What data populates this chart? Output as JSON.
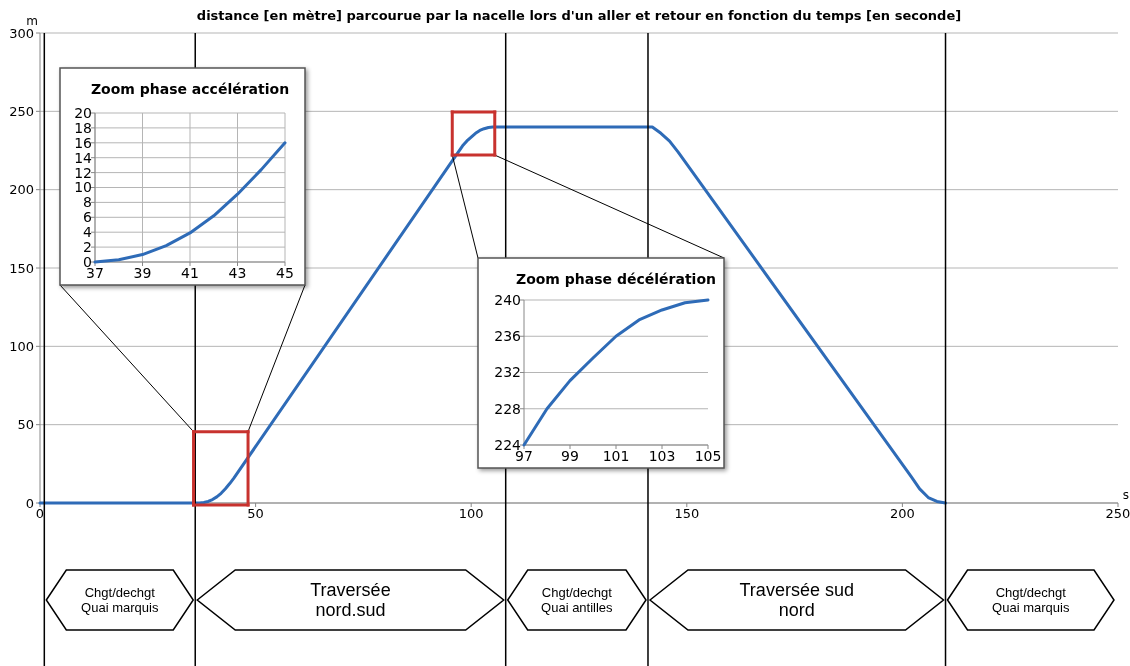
{
  "chart_data": [
    {
      "type": "line",
      "title": "distance [en mètre] parcourue par la nacelle lors d'un aller et retour en fonction du temps [en seconde]",
      "xlabel": "s",
      "ylabel": "m",
      "x": [
        0,
        37,
        38,
        39,
        40,
        41,
        42,
        43,
        44,
        45,
        97,
        98,
        99,
        100,
        101,
        102,
        103,
        104,
        105,
        142,
        144,
        146,
        148,
        202,
        204,
        206,
        208,
        210
      ],
      "series": [
        {
          "color": "#2e6bb7",
          "values": [
            0,
            0,
            0.3,
            1,
            2.2,
            3.9,
            6.2,
            9.1,
            12.4,
            16,
            224,
            228,
            231.1,
            233.6,
            236,
            237.8,
            238.9,
            239.7,
            240,
            240,
            236,
            231,
            224,
            17,
            9,
            3.5,
            1,
            0
          ]
        }
      ],
      "xlim": [
        0,
        250
      ],
      "xticks": [
        0,
        50,
        100,
        150,
        200,
        250
      ],
      "ylim": [
        0,
        300
      ],
      "yticks": [
        0,
        50,
        100,
        150,
        200,
        250,
        300
      ],
      "grid": "y",
      "marker": "none",
      "ref_lines": [
        {
          "axis": "x",
          "value": 1,
          "color": "#000000"
        },
        {
          "axis": "x",
          "value": 36,
          "color": "#000000"
        },
        {
          "axis": "x",
          "value": 108,
          "color": "#000000"
        },
        {
          "axis": "x",
          "value": 141,
          "color": "#000000"
        },
        {
          "axis": "x",
          "value": 210,
          "color": "#000000"
        }
      ],
      "annotations": [
        "Chgt/dechgt\nQuai marquis",
        "Traversée\nnord.sud",
        "Chgt/dechgt\nQuai antilles",
        "Traversée sud\nnord",
        "Chgt/dechgt\nQuai marquis"
      ]
    },
    {
      "type": "line",
      "title": "Zoom phase accélération",
      "x": [
        37,
        38,
        39,
        40,
        41,
        42,
        43,
        44,
        45
      ],
      "series": [
        {
          "color": "#2e6bb7",
          "values": [
            0,
            0.3,
            1,
            2.2,
            3.9,
            6.2,
            9.1,
            12.4,
            16
          ]
        }
      ],
      "xlim": [
        37,
        45
      ],
      "xticks": [
        37,
        39,
        41,
        43,
        45
      ],
      "ylim": [
        0,
        20
      ],
      "yticks": [
        0,
        2,
        4,
        6,
        8,
        10,
        12,
        14,
        16,
        18,
        20
      ],
      "grid": true,
      "marker": "none"
    },
    {
      "type": "line",
      "title": "Zoom phase décélération",
      "x": [
        97,
        98,
        99,
        100,
        101,
        102,
        103,
        104,
        105
      ],
      "series": [
        {
          "color": "#2e6bb7",
          "values": [
            224,
            228,
            231.1,
            233.6,
            236,
            237.8,
            238.9,
            239.7,
            240
          ]
        }
      ],
      "xlim": [
        97,
        105
      ],
      "xticks": [
        97,
        99,
        101,
        103,
        105
      ],
      "ylim": [
        224,
        240
      ],
      "yticks": [
        224,
        228,
        232,
        236,
        240
      ],
      "grid": "y",
      "marker": "none"
    }
  ]
}
